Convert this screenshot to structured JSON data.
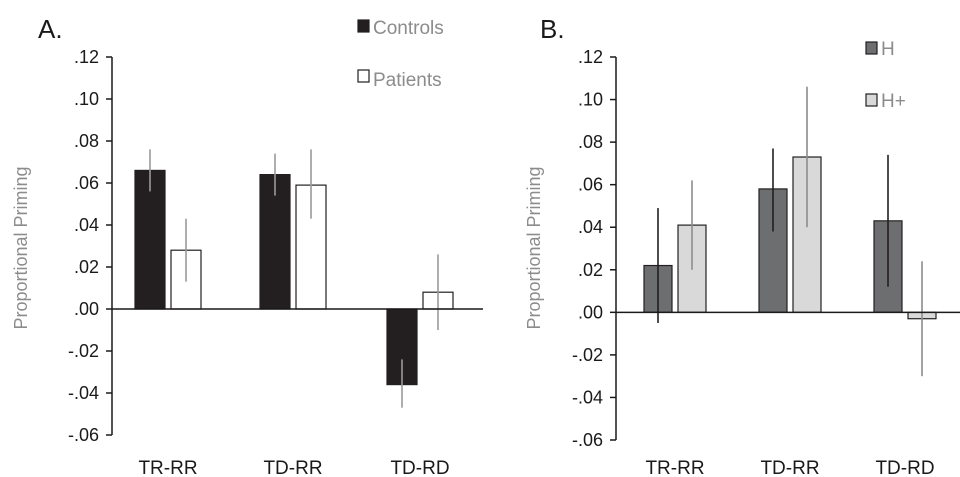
{
  "chart_data": [
    {
      "type": "bar",
      "panel_label": "A.",
      "ylabel": "Proportional Priming",
      "xlabel": "",
      "ylim": [
        -0.06,
        0.12
      ],
      "yticks": [
        -0.06,
        -0.04,
        -0.02,
        0.0,
        0.02,
        0.04,
        0.06,
        0.08,
        0.1,
        0.12
      ],
      "ytick_labels": [
        "-.06",
        "-.04",
        "-.02",
        ".00",
        ".02",
        ".04",
        ".06",
        ".08",
        ".10",
        ".12"
      ],
      "categories": [
        "TR-RR",
        "TD-RR",
        "TD-RD"
      ],
      "legend_position": "top-right",
      "grid": false,
      "series": [
        {
          "name": "Controls",
          "color": "#231f20",
          "values": [
            0.066,
            0.064,
            -0.036
          ],
          "err_low": [
            0.056,
            0.054,
            -0.047
          ],
          "err_high": [
            0.076,
            0.074,
            -0.024
          ],
          "err_color": "#9a9a9a"
        },
        {
          "name": "Patients",
          "color": "#ffffff",
          "values": [
            0.028,
            0.059,
            0.008
          ],
          "err_low": [
            0.013,
            0.043,
            -0.01
          ],
          "err_high": [
            0.043,
            0.076,
            0.026
          ],
          "err_color": "#9a9a9a"
        }
      ]
    },
    {
      "type": "bar",
      "panel_label": "B.",
      "ylabel": "Proportional Priming",
      "xlabel": "",
      "ylim": [
        -0.06,
        0.12
      ],
      "yticks": [
        -0.06,
        -0.04,
        -0.02,
        0.0,
        0.02,
        0.04,
        0.06,
        0.08,
        0.1,
        0.12
      ],
      "ytick_labels": [
        "-.06",
        "-.04",
        "-.02",
        ".00",
        ".02",
        ".04",
        ".06",
        ".08",
        ".10",
        ".12"
      ],
      "categories": [
        "TR-RR",
        "TD-RR",
        "TD-RD"
      ],
      "legend_position": "top-right",
      "grid": false,
      "series": [
        {
          "name": "H",
          "color": "#6d6e70",
          "values": [
            0.022,
            0.058,
            0.043
          ],
          "err_low": [
            -0.005,
            0.038,
            0.012
          ],
          "err_high": [
            0.049,
            0.077,
            0.074
          ],
          "err_color": "#231f20"
        },
        {
          "name": "H+",
          "color": "#d9d9d9",
          "values": [
            0.041,
            0.073,
            -0.003
          ],
          "err_low": [
            0.02,
            0.04,
            -0.03
          ],
          "err_high": [
            0.062,
            0.106,
            0.024
          ],
          "err_color": "#8c8c8c"
        }
      ]
    }
  ]
}
